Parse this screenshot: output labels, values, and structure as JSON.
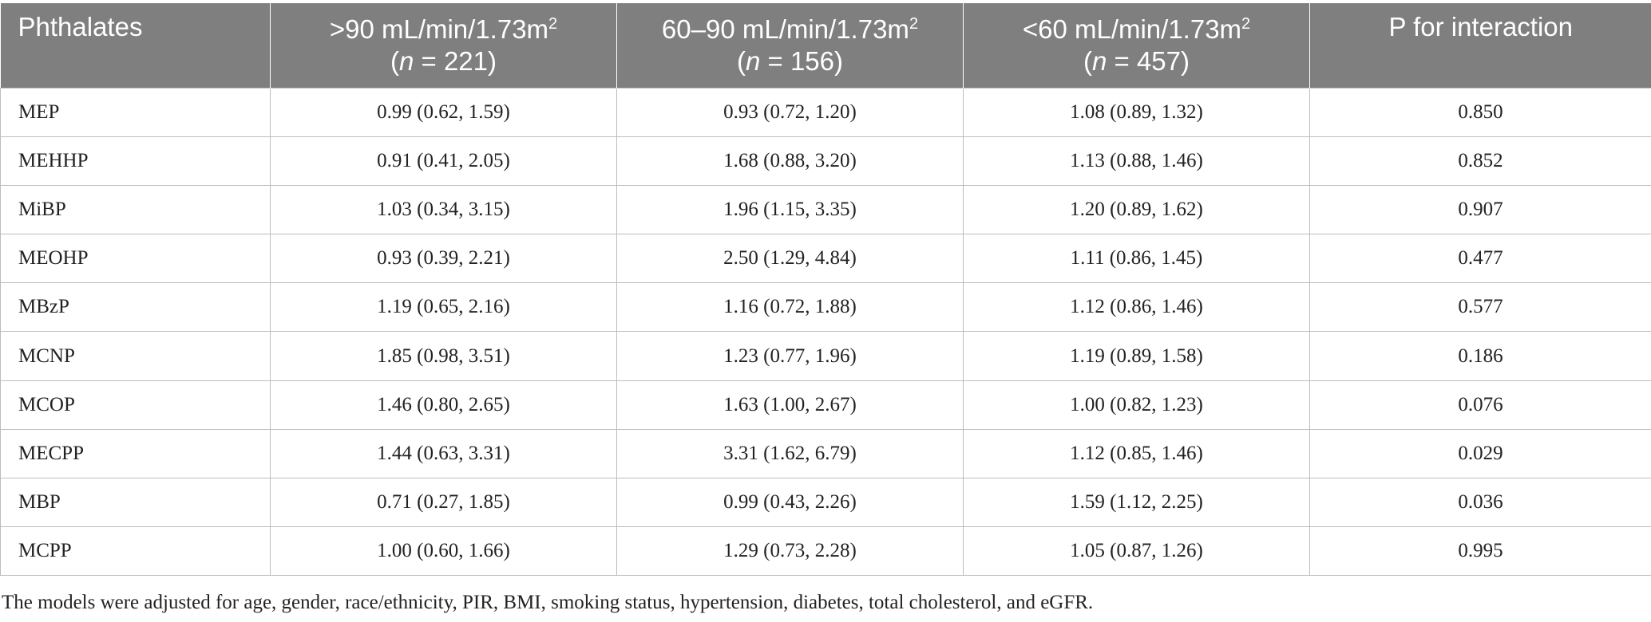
{
  "table": {
    "header": {
      "col1": "Phthalates",
      "col2": {
        "range": ">90 mL/min/1.73m",
        "sup": "2",
        "n_open": "(",
        "n_label": "n",
        "n_value": " = 221)"
      },
      "col3": {
        "range": "60–90 mL/min/1.73m",
        "sup": "2",
        "n_open": "(",
        "n_label": "n",
        "n_value": " = 156)"
      },
      "col4": {
        "range": "<60 mL/min/1.73m",
        "sup": "2",
        "n_open": "(",
        "n_label": "n",
        "n_value": " = 457)"
      },
      "col5": "P for interaction"
    },
    "rows": [
      {
        "name": "MEP",
        "c1": "0.99 (0.62, 1.59)",
        "c2": "0.93 (0.72, 1.20)",
        "c3": "1.08 (0.89, 1.32)",
        "p": "0.850"
      },
      {
        "name": "MEHHP",
        "c1": "0.91 (0.41, 2.05)",
        "c2": "1.68 (0.88, 3.20)",
        "c3": "1.13 (0.88, 1.46)",
        "p": "0.852"
      },
      {
        "name": "MiBP",
        "c1": "1.03 (0.34, 3.15)",
        "c2": "1.96 (1.15, 3.35)",
        "c3": "1.20 (0.89, 1.62)",
        "p": "0.907"
      },
      {
        "name": "MEOHP",
        "c1": "0.93 (0.39, 2.21)",
        "c2": "2.50 (1.29, 4.84)",
        "c3": "1.11 (0.86, 1.45)",
        "p": "0.477"
      },
      {
        "name": "MBzP",
        "c1": "1.19 (0.65, 2.16)",
        "c2": "1.16 (0.72, 1.88)",
        "c3": "1.12 (0.86, 1.46)",
        "p": "0.577"
      },
      {
        "name": "MCNP",
        "c1": "1.85 (0.98, 3.51)",
        "c2": "1.23 (0.77, 1.96)",
        "c3": "1.19 (0.89, 1.58)",
        "p": "0.186"
      },
      {
        "name": "MCOP",
        "c1": "1.46 (0.80, 2.65)",
        "c2": "1.63 (1.00, 2.67)",
        "c3": "1.00 (0.82, 1.23)",
        "p": "0.076"
      },
      {
        "name": "MECPP",
        "c1": "1.44 (0.63, 3.31)",
        "c2": "3.31 (1.62, 6.79)",
        "c3": "1.12 (0.85, 1.46)",
        "p": "0.029"
      },
      {
        "name": "MBP",
        "c1": "0.71 (0.27, 1.85)",
        "c2": "0.99 (0.43, 2.26)",
        "c3": "1.59 (1.12, 2.25)",
        "p": "0.036"
      },
      {
        "name": "MCPP",
        "c1": "1.00 (0.60, 1.66)",
        "c2": "1.29 (0.73, 2.28)",
        "c3": "1.05 (0.87, 1.26)",
        "p": "0.995"
      }
    ]
  },
  "footnote": "The models were adjusted for age, gender, race/ethnicity, PIR, BMI, smoking status, hypertension, diabetes, total cholesterol, and eGFR.",
  "colors": {
    "header_bg": "#7f7f7f",
    "header_text": "#ffffff",
    "grid": "#bdbdbd",
    "body_text": "#222222"
  }
}
